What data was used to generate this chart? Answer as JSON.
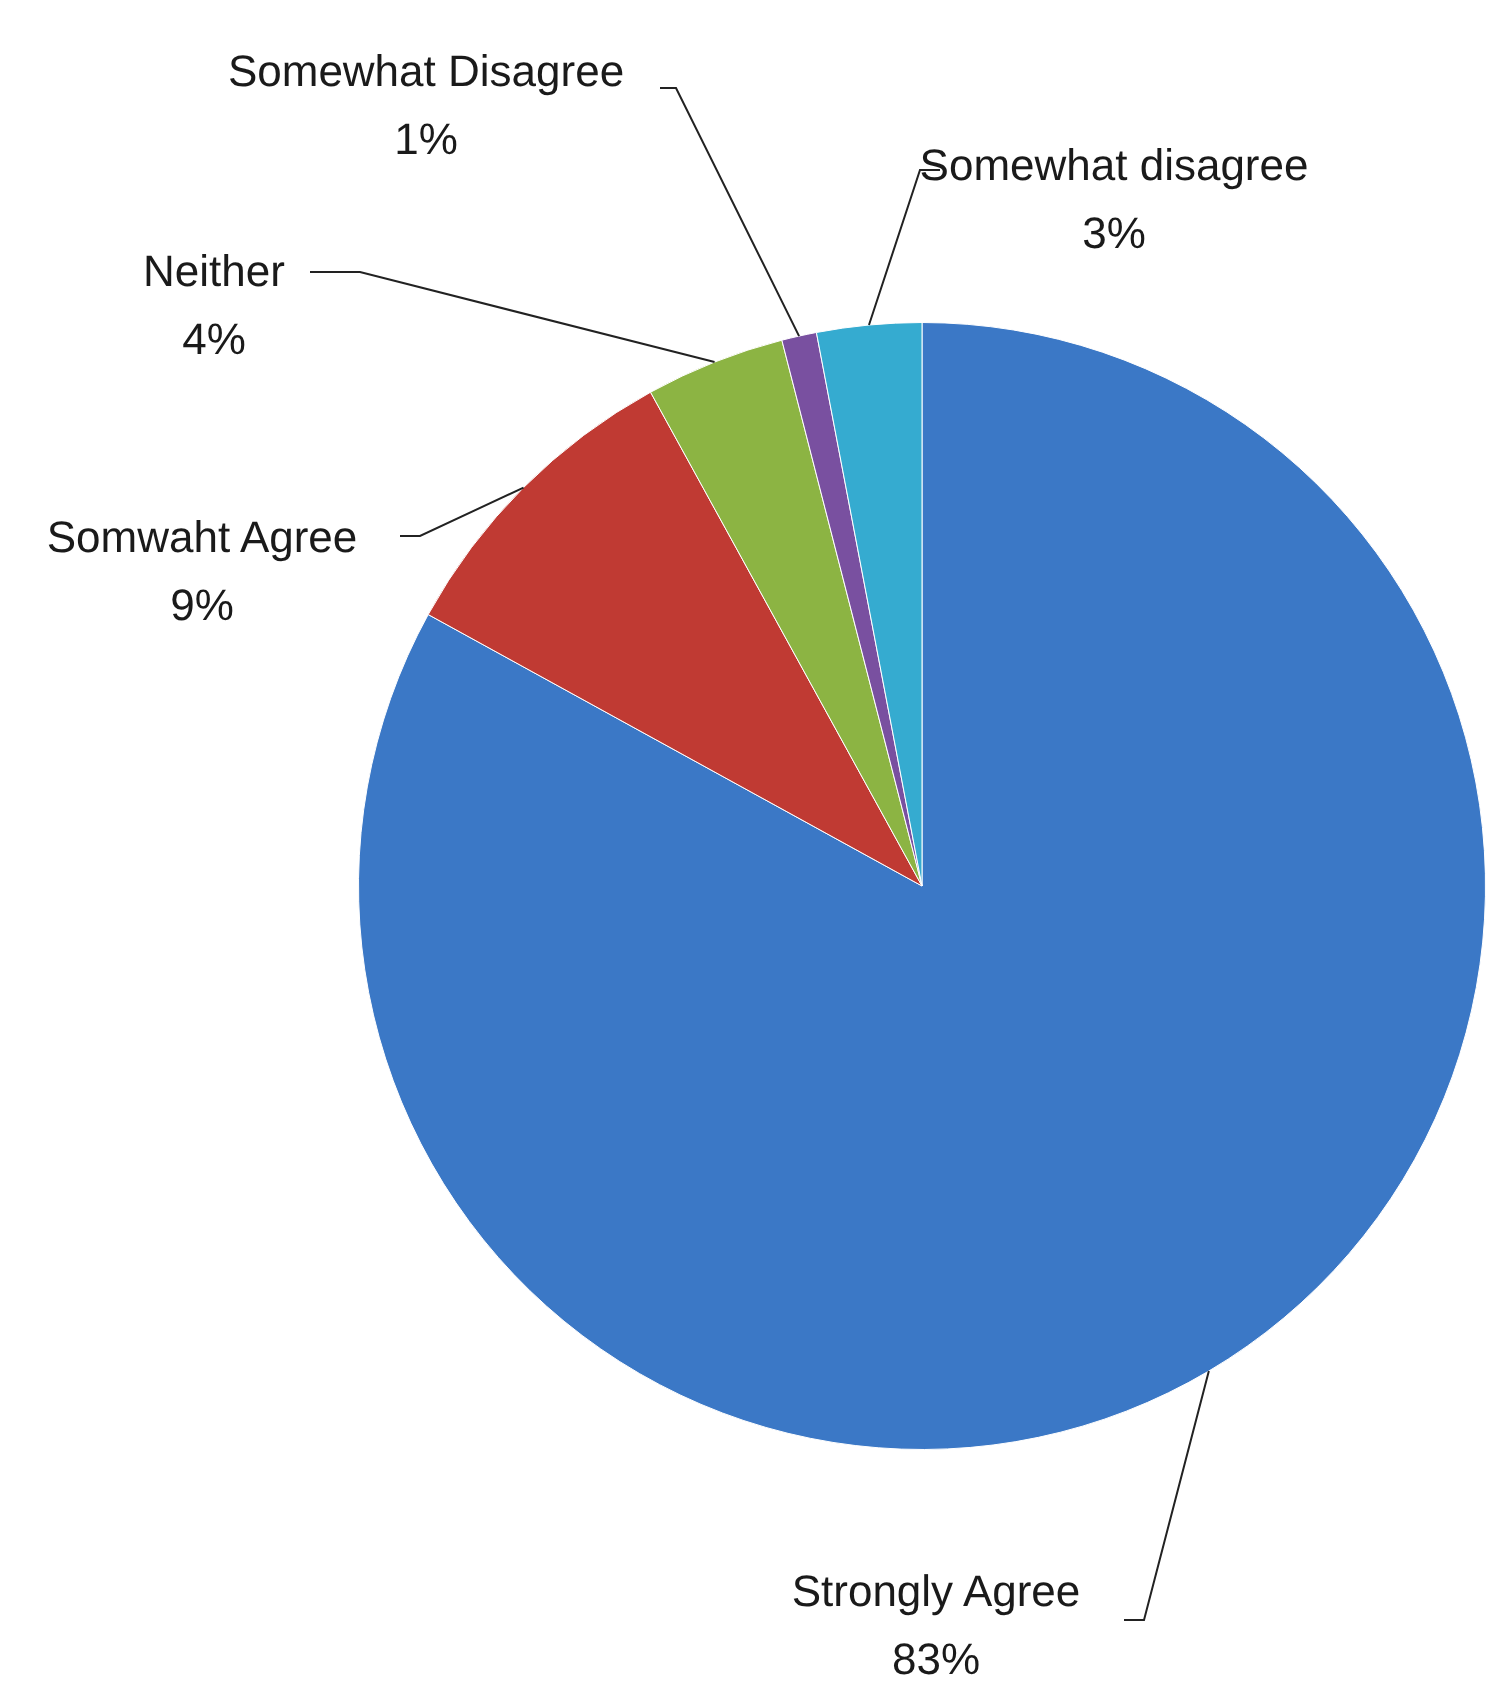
{
  "chart_data": {
    "type": "pie",
    "categories": [
      "Strongly Agree",
      "Somwaht Agree",
      "Neither",
      "Somewhat Disagree",
      "Somewhat disagree"
    ],
    "values": [
      83,
      9,
      4,
      1,
      3
    ],
    "value_labels": [
      "83%",
      "9%",
      "4%",
      "1%",
      "3%"
    ],
    "colors": [
      "#3b78c6",
      "#c03a33",
      "#8cb443",
      "#7950a0",
      "#35abd0"
    ],
    "legend": false
  }
}
